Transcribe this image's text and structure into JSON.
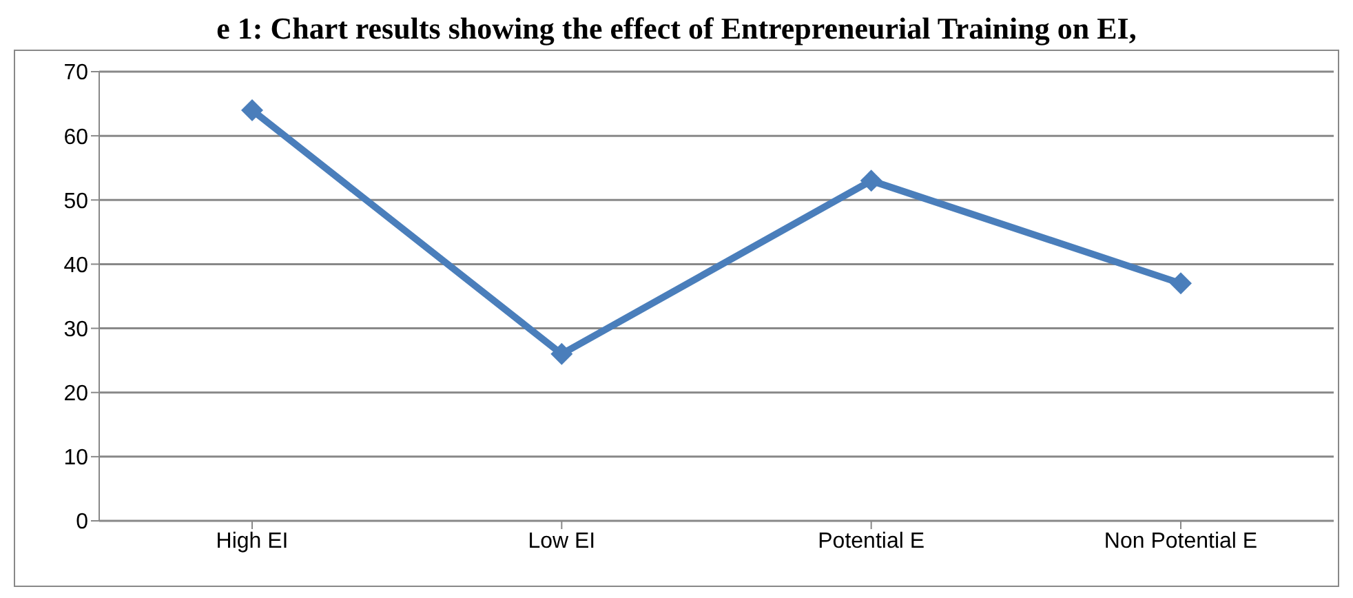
{
  "chart_data": {
    "type": "line",
    "title": "e 1: Chart results showing the effect of Entrepreneurial Training on EI,",
    "categories": [
      "High EI",
      "Low EI",
      "Potential E",
      "Non Potential E"
    ],
    "series": [
      {
        "color": "#4a7ebb",
        "values": [
          64,
          26,
          53,
          37
        ]
      }
    ],
    "ylim": [
      0,
      70
    ],
    "yticks": [
      0,
      10,
      20,
      30,
      40,
      50,
      60,
      70
    ],
    "grid": "y",
    "legend": false,
    "marker": "diamond",
    "line_style": "solid"
  }
}
